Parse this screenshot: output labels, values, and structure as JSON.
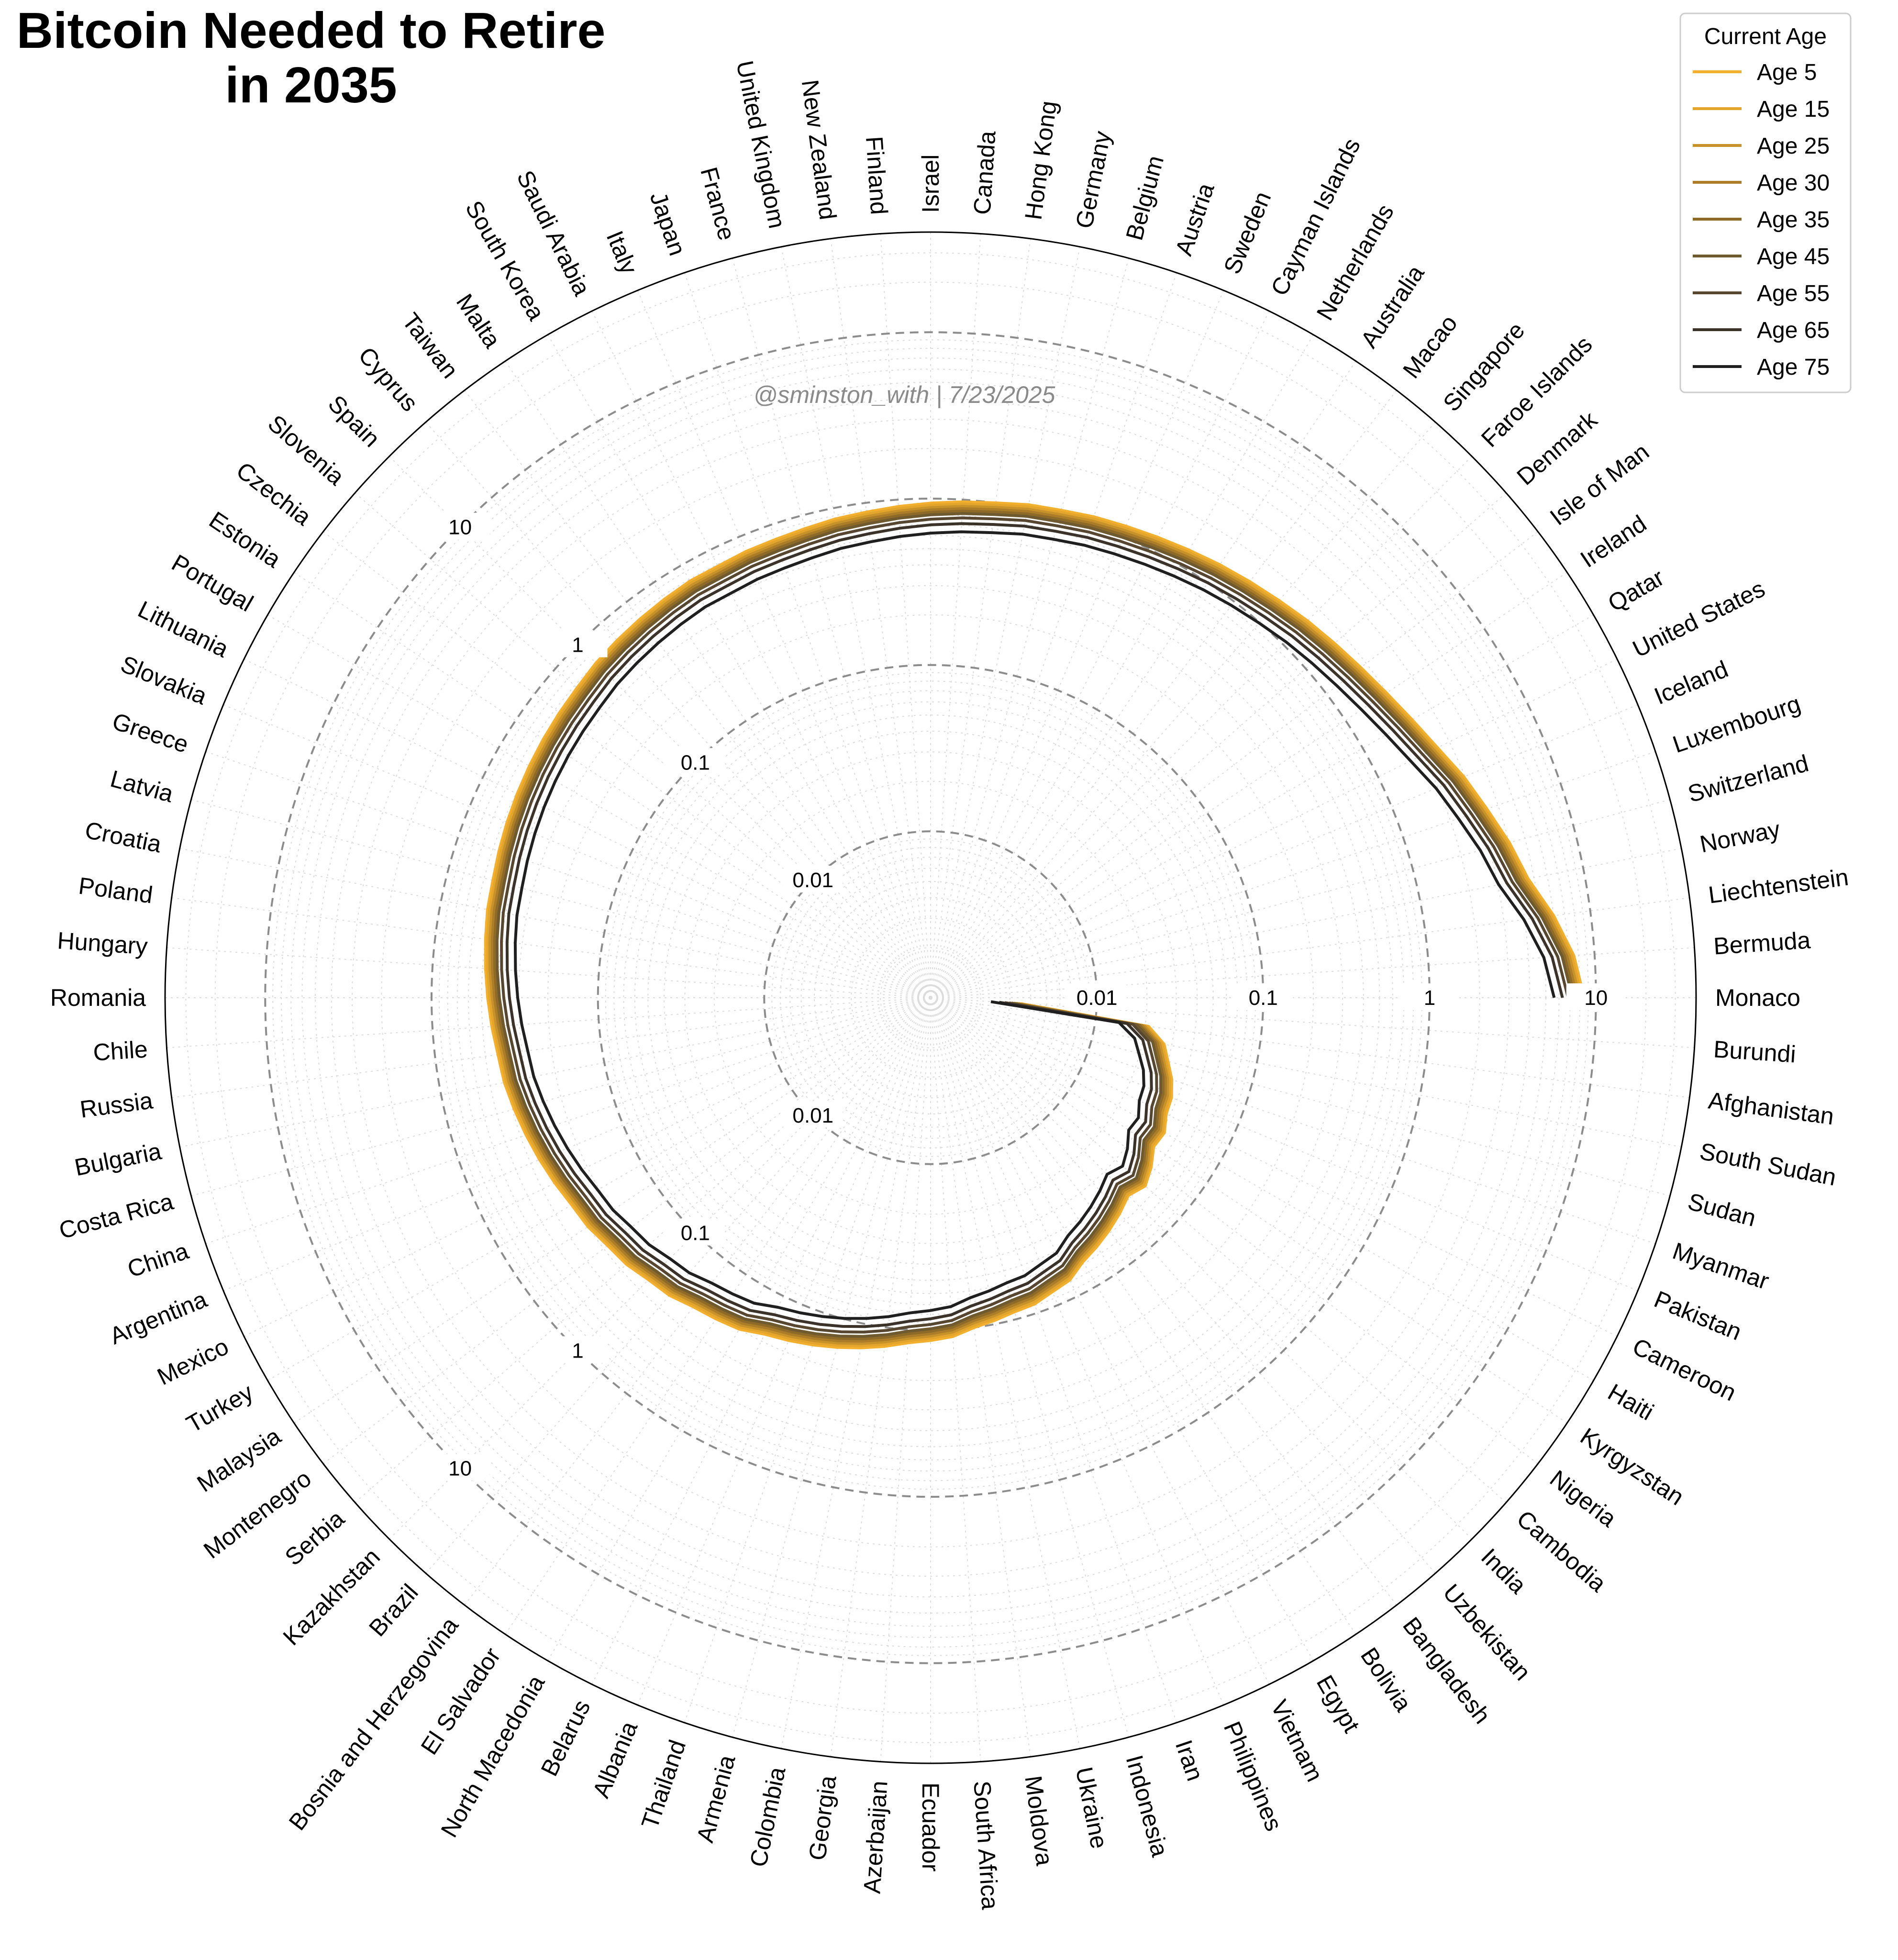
{
  "title_lines": [
    "Bitcoin Needed to Retire",
    "in 2035"
  ],
  "watermark": "@sminston_with  |  7/23/2025",
  "legend": {
    "title": "Current Age",
    "placement": "top-right"
  },
  "colors": {
    "Age 5": "#f3b02e",
    "Age 15": "#e4a52c",
    "Age 25": "#c8922a",
    "Age 30": "#ab7d28",
    "Age 35": "#8d6a27",
    "Age 45": "#6f5a2f",
    "Age 55": "#574730",
    "Age 65": "#3b332a",
    "Age 75": "#1f1f1f",
    "ring_dashed": "#8c8c8c",
    "grid": "#dcdcdc"
  },
  "chart_data": {
    "type": "polar-line",
    "title": "Bitcoin Needed to Retire in 2035",
    "radial_scale": "log",
    "radial_range": [
      0.001,
      40
    ],
    "radial_ticks": [
      {
        "value": 0.01,
        "label": "0.01"
      },
      {
        "value": 0.1,
        "label": "0.1"
      },
      {
        "value": 1,
        "label": "1"
      },
      {
        "value": 10,
        "label": "10"
      }
    ],
    "grid": true,
    "categories": [
      "Monaco",
      "Bermuda",
      "Liechtenstein",
      "Norway",
      "Switzerland",
      "Luxembourg",
      "Iceland",
      "United States",
      "Qatar",
      "Ireland",
      "Isle of Man",
      "Denmark",
      "Faroe Islands",
      "Singapore",
      "Macao",
      "Australia",
      "Netherlands",
      "Cayman Islands",
      "Sweden",
      "Austria",
      "Belgium",
      "Germany",
      "Hong Kong",
      "Canada",
      "Israel",
      "Finland",
      "New Zealand",
      "United Kingdom",
      "France",
      "Japan",
      "Italy",
      "Saudi Arabia",
      "South Korea",
      "Malta",
      "Taiwan",
      "Cyprus",
      "Spain",
      "Slovenia",
      "Czechia",
      "Estonia",
      "Portugal",
      "Lithuania",
      "Slovakia",
      "Greece",
      "Latvia",
      "Croatia",
      "Poland",
      "Hungary",
      "Romania",
      "Chile",
      "Russia",
      "Bulgaria",
      "Costa Rica",
      "China",
      "Argentina",
      "Mexico",
      "Turkey",
      "Malaysia",
      "Montenegro",
      "Serbia",
      "Kazakhstan",
      "Brazil",
      "Bosnia and Herzegovina",
      "El Salvador",
      "North Macedonia",
      "Belarus",
      "Albania",
      "Thailand",
      "Armenia",
      "Colombia",
      "Georgia",
      "Azerbaijan",
      "Ecuador",
      "South Africa",
      "Moldova",
      "Ukraine",
      "Indonesia",
      "Iran",
      "Philippines",
      "Vietnam",
      "Egypt",
      "Bolivia",
      "Bangladesh",
      "Uzbekistan",
      "India",
      "Cambodia",
      "Nigeria",
      "Kyrgyzstan",
      "Haiti",
      "Cameroon",
      "Pakistan",
      "Myanmar",
      "Sudan",
      "South Sudan",
      "Afghanistan",
      "Burundi"
    ],
    "base_values": [
      8.5,
      7.5,
      6.0,
      4.6,
      4.0,
      3.4,
      2.95,
      2.5,
      2.2,
      1.98,
      1.82,
      1.7,
      1.6,
      1.5,
      1.42,
      1.35,
      1.28,
      1.22,
      1.17,
      1.13,
      1.08,
      1.05,
      1.0,
      0.97,
      0.94,
      0.91,
      0.88,
      0.86,
      0.83,
      0.81,
      0.8,
      0.78,
      0.78,
      0.76,
      0.74,
      0.72,
      0.7,
      0.67,
      0.65,
      0.63,
      0.61,
      0.59,
      0.57,
      0.55,
      0.53,
      0.52,
      0.5,
      0.48,
      0.46,
      0.44,
      0.42,
      0.41,
      0.39,
      0.37,
      0.35,
      0.33,
      0.31,
      0.3,
      0.28,
      0.27,
      0.25,
      0.24,
      0.22,
      0.21,
      0.2,
      0.18,
      0.17,
      0.16,
      0.15,
      0.14,
      0.13,
      0.12,
      0.115,
      0.11,
      0.1,
      0.095,
      0.09,
      0.088,
      0.082,
      0.078,
      0.068,
      0.063,
      0.058,
      0.053,
      0.048,
      0.052,
      0.047,
      0.041,
      0.042,
      0.038,
      0.037,
      0.034,
      0.03,
      0.027,
      0.021,
      0.0035
    ],
    "series": [
      {
        "name": "Age 5",
        "multiplier": 1.0
      },
      {
        "name": "Age 15",
        "multiplier": 0.97
      },
      {
        "name": "Age 25",
        "multiplier": 0.94
      },
      {
        "name": "Age 30",
        "multiplier": 0.91
      },
      {
        "name": "Age 35",
        "multiplier": 0.88
      },
      {
        "name": "Age 45",
        "multiplier": 0.85
      },
      {
        "name": "Age 55",
        "multiplier": 0.8
      },
      {
        "name": "Age 65",
        "multiplier": 0.74
      },
      {
        "name": "Age 75",
        "multiplier": 0.66
      }
    ]
  }
}
